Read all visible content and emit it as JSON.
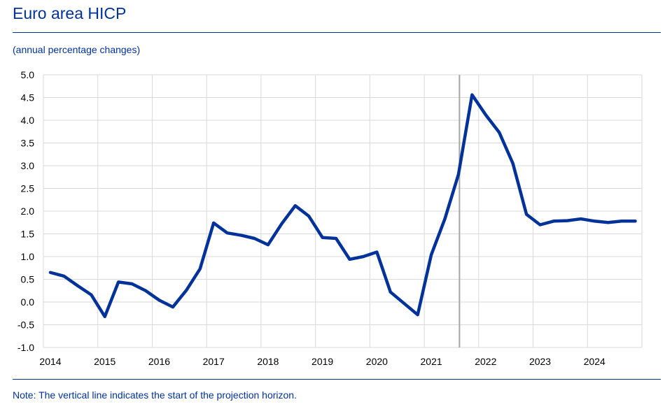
{
  "title": "Euro area HICP",
  "subtitle": "(annual percentage changes)",
  "note": "Note: The vertical line indicates the start of the projection horizon.",
  "colors": {
    "line": "#003299",
    "projection_line": "#a6a6a6",
    "grid": "#d9d9d9",
    "text_accent": "#003299"
  },
  "chart_data": {
    "type": "line",
    "title": "Euro area HICP",
    "subtitle": "(annual percentage changes)",
    "xlabel": "",
    "ylabel": "",
    "ylim": [
      -1.0,
      5.0
    ],
    "xlim": [
      2014,
      2025
    ],
    "y_ticks": [
      "5.0",
      "4.5",
      "4.0",
      "3.5",
      "3.0",
      "2.5",
      "2.0",
      "1.5",
      "1.0",
      "0.5",
      "0.0",
      "-0.5",
      "-1.0"
    ],
    "x_ticks": [
      "2014",
      "2015",
      "2016",
      "2017",
      "2018",
      "2019",
      "2020",
      "2021",
      "2022",
      "2023",
      "2024"
    ],
    "grid": true,
    "projection_start": 2021.75,
    "series": [
      {
        "x": [
          2014.0,
          2014.25,
          2014.5,
          2014.75,
          2015.0,
          2015.25,
          2015.5,
          2015.75,
          2016.0,
          2016.25,
          2016.5,
          2016.75,
          2017.0,
          2017.25,
          2017.5,
          2017.75,
          2018.0,
          2018.25,
          2018.5,
          2018.75,
          2019.0,
          2019.25,
          2019.5,
          2019.75,
          2020.0,
          2020.25,
          2020.5,
          2020.75,
          2021.0,
          2021.25,
          2021.5,
          2021.75,
          2022.0,
          2022.25,
          2022.5,
          2022.75,
          2023.0,
          2023.25,
          2023.5,
          2023.75,
          2024.0,
          2024.25,
          2024.5,
          2024.75
        ],
        "values": [
          0.65,
          0.57,
          0.36,
          0.16,
          -0.32,
          0.44,
          0.4,
          0.25,
          0.04,
          -0.11,
          0.26,
          0.73,
          1.74,
          1.52,
          1.47,
          1.4,
          1.26,
          1.72,
          2.12,
          1.89,
          1.42,
          1.4,
          0.94,
          1.0,
          1.1,
          0.22,
          -0.03,
          -0.28,
          1.04,
          1.83,
          2.81,
          4.56,
          4.12,
          3.73,
          3.05,
          1.93,
          1.7,
          1.78,
          1.79,
          1.83,
          1.78,
          1.75,
          1.78,
          1.78
        ]
      }
    ]
  }
}
